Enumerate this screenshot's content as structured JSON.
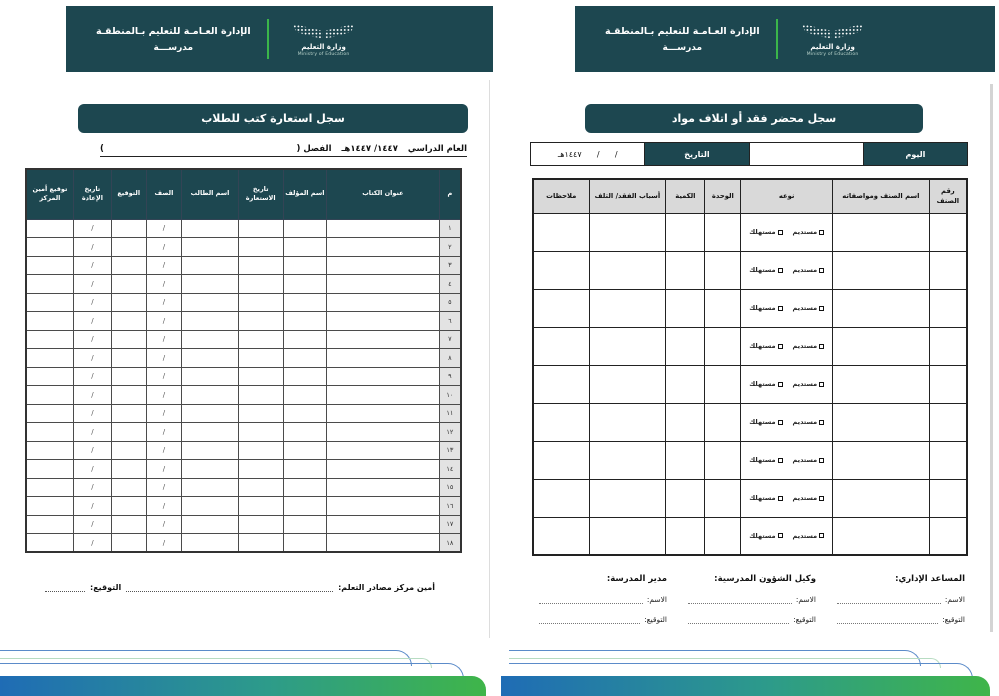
{
  "colors": {
    "header_teal": "#1d4750",
    "accent_green": "#3bb54a",
    "table_header_gray": "#d9d9d9",
    "row_number_gray": "#e3e3e3",
    "wave_gradient": [
      "#1f6cb5",
      "#2d9b8a",
      "#3fb549"
    ],
    "line_blue": "#5b8bc9",
    "line_green": "#b7dcc2"
  },
  "header": {
    "org_line1": "الإدارة العـامـة للتعليم بـالمنطقـة",
    "org_line2": "مدرســـة",
    "ministry_ar": "وزارة التعليم",
    "ministry_en": "Ministry of Education"
  },
  "left_page": {
    "title": "سجل استعارة كتب للطلاب",
    "subtitle": {
      "year_label": "العام الدراسي",
      "year_value": "١٤٤٧/ ١٤٤٧هـ",
      "term_open": "الفصل (",
      "term_close": ")"
    },
    "table": {
      "columns": [
        {
          "label": "م",
          "cell": ""
        },
        {
          "label": "عنوان الكتاب",
          "cell": ""
        },
        {
          "label": "اسم المؤلف",
          "cell": ""
        },
        {
          "label": "تاريخ الاستعارة",
          "cell": ""
        },
        {
          "label": "اسم الطالب",
          "cell": ""
        },
        {
          "label": "الصف",
          "cell": "/"
        },
        {
          "label": "التوقيع",
          "cell": ""
        },
        {
          "label": "تاريخ الإعادة",
          "cell": "/"
        },
        {
          "label": "توقيع أمين المركز",
          "cell": ""
        }
      ],
      "row_numbers": [
        "١",
        "٢",
        "٣",
        "٤",
        "٥",
        "٦",
        "٧",
        "٨",
        "٩",
        "١٠",
        "١١",
        "١٢",
        "١٣",
        "١٤",
        "١٥",
        "١٦",
        "١٧",
        "١٨"
      ]
    },
    "footer": {
      "custodian_label": "أمين مركز مصادر التعلم:",
      "signature_label": "التوقيع:"
    }
  },
  "right_page": {
    "title": "سجل محضر فقد أو اتلاف مواد",
    "date_bar": {
      "day_label": "اليوم",
      "day_value": "",
      "date_label": "التاريخ",
      "date_value": "/      /      ١٤٤٧هـ"
    },
    "table": {
      "columns": [
        {
          "label": "رقم الصنف"
        },
        {
          "label": "اسم الصنف ومواصفاته"
        },
        {
          "label": "نوعه",
          "type_cell": true
        },
        {
          "label": "الوحدة"
        },
        {
          "label": "الكمية"
        },
        {
          "label": "أسباب الفقد/ التلف"
        },
        {
          "label": "ملاحظات"
        }
      ],
      "row_count": 9,
      "type_options": [
        "مستديم",
        "مستهلك"
      ]
    },
    "signatures": [
      {
        "title": "المساعد الإداري:",
        "name_label": "الاسم:",
        "sign_label": "التوقيع:"
      },
      {
        "title": "وكيل الشؤون المدرسية:",
        "name_label": "الاسم:",
        "sign_label": "التوقيع:"
      },
      {
        "title": "مدير المدرسة:",
        "name_label": "الاسم:",
        "sign_label": "التوقيع:"
      }
    ]
  }
}
